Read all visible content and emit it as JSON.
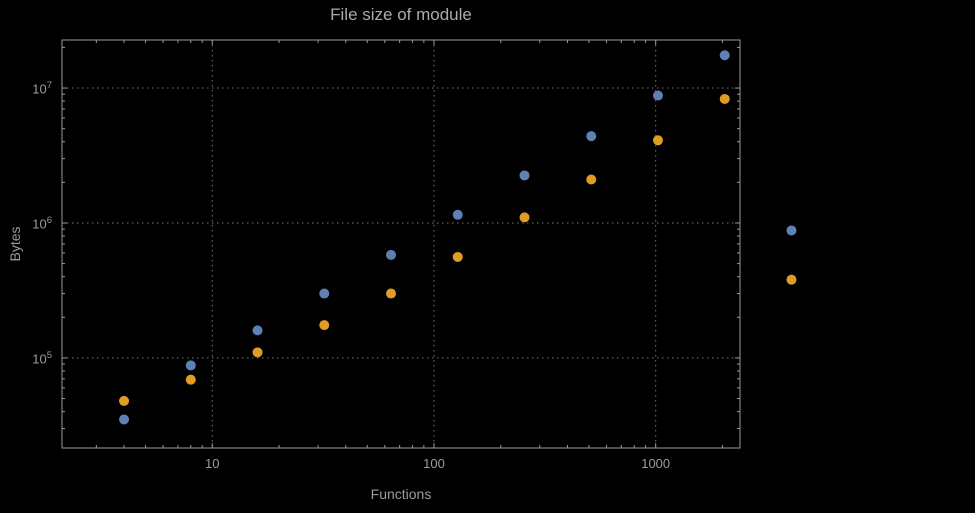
{
  "chart_data": {
    "type": "scatter",
    "title": "File size of module",
    "xlabel": "Functions",
    "ylabel": "Bytes",
    "xscale": "log",
    "yscale": "log",
    "xlim": [
      2.1,
      2400
    ],
    "ylim": [
      21500,
      22700000
    ],
    "grid": "major-dotted",
    "frame": true,
    "legend": false,
    "x": [
      4,
      8,
      16,
      32,
      64,
      128,
      256,
      512,
      1024,
      2048,
      4096
    ],
    "series": [
      {
        "name": "series-1",
        "color": "#5e81b5",
        "values": [
          35000,
          88000,
          160000,
          300000,
          580000,
          1150000,
          2250000,
          4400000,
          8800000,
          17500000,
          880000
        ]
      },
      {
        "name": "series-2",
        "color": "#e19c24",
        "values": [
          48000,
          69000,
          110000,
          175000,
          300000,
          560000,
          1100000,
          2100000,
          4100000,
          8300000,
          380000
        ]
      }
    ],
    "x_ticks": [
      {
        "value": 10,
        "label": "10"
      },
      {
        "value": 100,
        "label": "100"
      },
      {
        "value": 1000,
        "label": "1000"
      }
    ],
    "y_ticks": [
      {
        "value": 100000,
        "base": "10",
        "exp": "5"
      },
      {
        "value": 1000000,
        "base": "10",
        "exp": "6"
      },
      {
        "value": 10000000,
        "base": "10",
        "exp": "7"
      }
    ],
    "colors": {
      "background": "#000000",
      "frame": "#9a9a9a",
      "grid": "#767676",
      "text": "#9b9b9b",
      "title": "#ababab"
    }
  }
}
